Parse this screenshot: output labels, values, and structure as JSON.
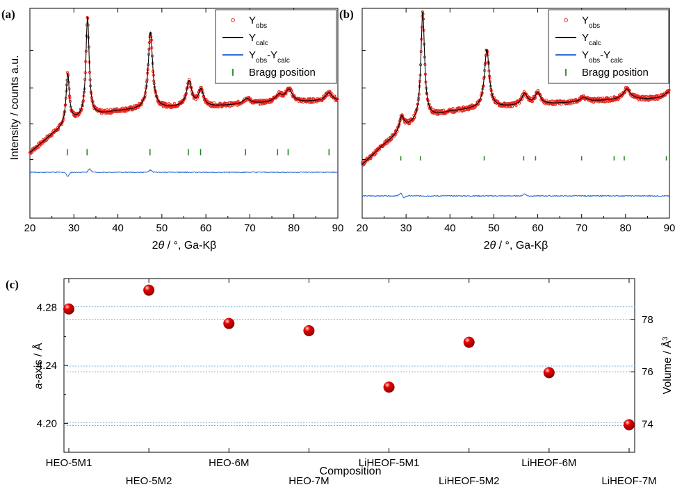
{
  "colors": {
    "obs": "#e8231c",
    "calc": "#000000",
    "diff": "#2f6fd6",
    "bragg": "#1e8a1e",
    "left_axis": "#3a78c4",
    "right_axis": "#1e9a5a",
    "marker": "#e60000",
    "gridline": "#7fb0d8"
  },
  "chart_data": [
    {
      "type": "line",
      "panel": "(a)",
      "xlabel_prefix": "2",
      "xlabel_theta": "θ",
      "xlabel_suffix": " / °, Ga-Kβ",
      "ylabel": "Intensity / counts a.u.",
      "xlim": [
        20,
        90
      ],
      "xticks": [
        20,
        30,
        40,
        50,
        60,
        70,
        80,
        90
      ],
      "legend": {
        "placement": "top-right",
        "entries": [
          {
            "main": "Y",
            "sub": "obs",
            "kind": "obs"
          },
          {
            "main": "Y",
            "sub": "calc",
            "kind": "calc"
          },
          {
            "main": "Y",
            "sub": "obs",
            "main2": "-Y",
            "sub2": "calc",
            "kind": "diff"
          },
          {
            "main": "Bragg position",
            "kind": "bragg"
          }
        ]
      },
      "baseline": {
        "x": [
          20,
          25,
          30,
          35,
          40,
          45,
          50,
          55,
          60,
          65,
          70,
          75,
          80,
          85,
          90
        ],
        "y": [
          0.0,
          0.13,
          0.23,
          0.27,
          0.3,
          0.31,
          0.32,
          0.33,
          0.33,
          0.34,
          0.35,
          0.36,
          0.36,
          0.37,
          0.37
        ]
      },
      "peaks": [
        {
          "pos": 28.6,
          "height": 0.36,
          "width": 0.45
        },
        {
          "pos": 33.1,
          "height": 0.72,
          "width": 0.45
        },
        {
          "pos": 47.4,
          "height": 0.55,
          "width": 0.6
        },
        {
          "pos": 56.2,
          "height": 0.18,
          "width": 0.7
        },
        {
          "pos": 58.9,
          "height": 0.12,
          "width": 0.7
        },
        {
          "pos": 69.3,
          "height": 0.04,
          "width": 1.0
        },
        {
          "pos": 76.6,
          "height": 0.05,
          "width": 1.0
        },
        {
          "pos": 78.9,
          "height": 0.09,
          "width": 1.0
        },
        {
          "pos": 88.0,
          "height": 0.06,
          "width": 1.0
        }
      ],
      "bragg_positions": [
        28.5,
        33.0,
        47.3,
        56.0,
        58.8,
        69.0,
        76.3,
        78.7,
        88.0
      ],
      "diff_features": [
        {
          "pos": 28.6,
          "amp": -0.09
        },
        {
          "pos": 33.6,
          "amp": 0.08
        },
        {
          "pos": 47.4,
          "amp": 0.05
        }
      ]
    },
    {
      "type": "line",
      "panel": "(b)",
      "xlabel_prefix": "2",
      "xlabel_theta": "θ",
      "xlabel_suffix": " / °, Ga-Kβ",
      "xlim": [
        20,
        90
      ],
      "xticks": [
        20,
        30,
        40,
        50,
        60,
        70,
        80,
        90
      ],
      "legend": {
        "placement": "top-right",
        "entries": [
          {
            "main": "Y",
            "sub": "obs",
            "kind": "obs"
          },
          {
            "main": "Y",
            "sub": "calc",
            "kind": "calc"
          },
          {
            "main": "Y",
            "sub": "obs",
            "main2": "-Y",
            "sub2": "calc",
            "kind": "diff"
          },
          {
            "main": "Bragg position",
            "kind": "bragg"
          }
        ]
      },
      "baseline": {
        "x": [
          20,
          25,
          30,
          35,
          40,
          45,
          50,
          55,
          60,
          65,
          70,
          75,
          80,
          85,
          90
        ],
        "y": [
          0.0,
          0.14,
          0.26,
          0.33,
          0.37,
          0.39,
          0.4,
          0.41,
          0.42,
          0.43,
          0.44,
          0.45,
          0.46,
          0.46,
          0.47
        ]
      },
      "peaks": [
        {
          "pos": 29.0,
          "height": 0.1,
          "width": 0.6
        },
        {
          "pos": 33.8,
          "height": 0.76,
          "width": 0.5
        },
        {
          "pos": 48.4,
          "height": 0.41,
          "width": 0.65
        },
        {
          "pos": 57.0,
          "height": 0.08,
          "width": 0.8
        },
        {
          "pos": 60.0,
          "height": 0.08,
          "width": 0.8
        },
        {
          "pos": 70.5,
          "height": 0.03,
          "width": 1.0
        },
        {
          "pos": 80.3,
          "height": 0.07,
          "width": 1.0
        },
        {
          "pos": 89.8,
          "height": 0.04,
          "width": 1.0
        }
      ],
      "bragg_positions": [
        28.8,
        33.3,
        47.8,
        56.8,
        59.5,
        70.0,
        77.4,
        79.7,
        89.3
      ],
      "diff_features": [
        {
          "pos": 28.8,
          "amp": 0.07
        },
        {
          "pos": 29.4,
          "amp": -0.05
        },
        {
          "pos": 57.0,
          "amp": 0.05
        }
      ]
    },
    {
      "type": "scatter",
      "panel": "(c)",
      "xlabel": "Composition",
      "ylabel_left_italic": "a",
      "ylabel_left_rest": "-axis / Å",
      "ylabel_right_main": "Volume / Å",
      "ylabel_right_sup": "3",
      "categories": [
        "HEO-5M1",
        "HEO-5M2",
        "HEO-6M",
        "HEO-7M",
        "LiHEOF-5M1",
        "LiHEOF-5M2",
        "LiHEOF-6M",
        "LiHEOF-7M"
      ],
      "a_axis": [
        4.279,
        4.292,
        4.269,
        4.264,
        4.225,
        4.256,
        4.235,
        4.199
      ],
      "ylim_left": [
        4.18,
        4.3
      ],
      "yticks_left": [
        "4.20",
        "4.24",
        "4.28"
      ],
      "yticks_right": [
        "74",
        "76",
        "78"
      ],
      "right_tick_positions_in_left_units": [
        4.1995,
        4.2356,
        4.2718
      ],
      "dotted_gridlines_left_units": [
        4.1985,
        4.2005,
        4.2356,
        4.2395,
        4.2718,
        4.2805
      ]
    }
  ]
}
